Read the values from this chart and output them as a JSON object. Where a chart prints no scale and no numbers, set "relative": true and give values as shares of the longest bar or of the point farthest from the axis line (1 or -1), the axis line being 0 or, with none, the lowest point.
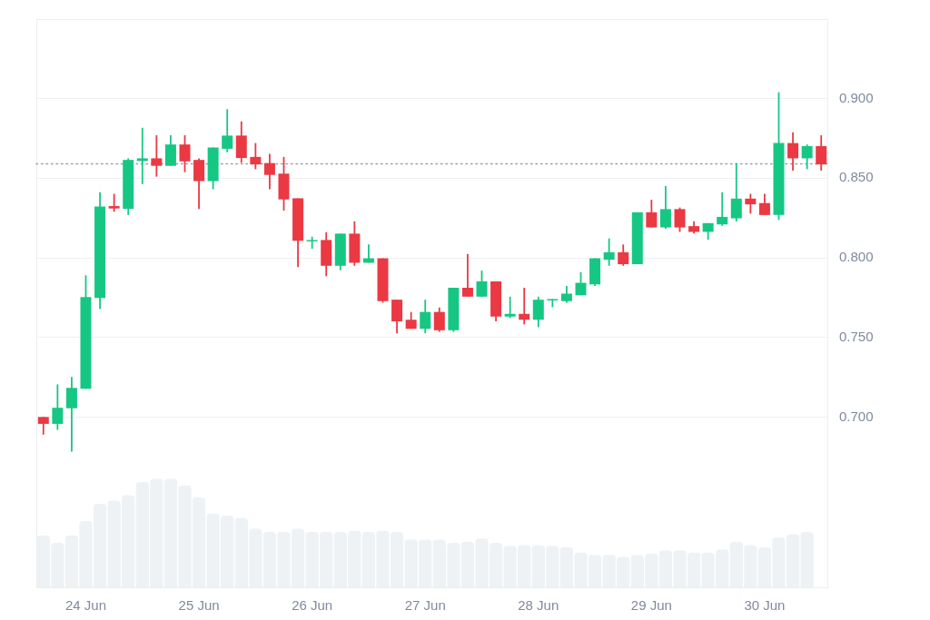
{
  "chart_data": [
    {
      "type": "candlestick",
      "categories": [
        null,
        null,
        null,
        "24 Jun",
        null,
        null,
        null,
        null,
        null,
        null,
        null,
        "25 Jun",
        null,
        null,
        null,
        null,
        null,
        null,
        null,
        "26 Jun",
        null,
        null,
        null,
        null,
        null,
        null,
        null,
        "27 Jun",
        null,
        null,
        null,
        null,
        null,
        null,
        null,
        "28 Jun",
        null,
        null,
        null,
        null,
        null,
        null,
        null,
        "29 Jun",
        null,
        null,
        null,
        null,
        null,
        null,
        null,
        "30 Jun",
        null,
        null,
        null,
        null
      ],
      "ohlc": [
        [
          0.7,
          0.7,
          0.6889,
          0.6957
        ],
        [
          0.6957,
          0.7205,
          0.6919,
          0.7058
        ],
        [
          0.7055,
          0.7251,
          0.6783,
          0.7183
        ],
        [
          0.7177,
          0.789,
          0.7177,
          0.7754
        ],
        [
          0.7748,
          0.8412,
          0.768,
          0.8323
        ],
        [
          0.8325,
          0.8402,
          0.8289,
          0.831
        ],
        [
          0.8308,
          0.8625,
          0.8269,
          0.8615
        ],
        [
          0.8608,
          0.8817,
          0.8463,
          0.8625
        ],
        [
          0.8625,
          0.877,
          0.851,
          0.8578
        ],
        [
          0.8578,
          0.877,
          0.8578,
          0.8712
        ],
        [
          0.8712,
          0.877,
          0.8538,
          0.8606
        ],
        [
          0.8615,
          0.8625,
          0.8306,
          0.8482
        ],
        [
          0.8482,
          0.8693,
          0.8431,
          0.8693
        ],
        [
          0.8685,
          0.8934,
          0.8663,
          0.8768
        ],
        [
          0.8768,
          0.8857,
          0.8597,
          0.8627
        ],
        [
          0.8634,
          0.8721,
          0.8557,
          0.8587
        ],
        [
          0.8595,
          0.8653,
          0.8431,
          0.8521
        ],
        [
          0.8529,
          0.8634,
          0.8297,
          0.8367
        ],
        [
          0.8374,
          0.8374,
          0.7941,
          0.8107
        ],
        [
          0.8107,
          0.8133,
          0.8057,
          0.8112
        ],
        [
          0.8112,
          0.8161,
          0.7884,
          0.795
        ],
        [
          0.795,
          0.8152,
          0.7922,
          0.8152
        ],
        [
          0.8152,
          0.8229,
          0.795,
          0.7969
        ],
        [
          0.7969,
          0.8084,
          0.7969,
          0.7997
        ],
        [
          0.7997,
          0.7997,
          0.7718,
          0.7728
        ],
        [
          0.7737,
          0.7737,
          0.7526,
          0.7601
        ],
        [
          0.7611,
          0.766,
          0.7554,
          0.7554
        ],
        [
          0.7554,
          0.7737,
          0.7526,
          0.766
        ],
        [
          0.766,
          0.7688,
          0.7535,
          0.7545
        ],
        [
          0.7545,
          0.7812,
          0.7535,
          0.7812
        ],
        [
          0.7812,
          0.8025,
          0.7756,
          0.7756
        ],
        [
          0.7756,
          0.792,
          0.7756,
          0.7852
        ],
        [
          0.7852,
          0.7852,
          0.7601,
          0.7631
        ],
        [
          0.7631,
          0.7756,
          0.7622,
          0.7648
        ],
        [
          0.7648,
          0.7812,
          0.7582,
          0.7611
        ],
        [
          0.7611,
          0.7756,
          0.7564,
          0.7737
        ],
        [
          0.7733,
          0.7741,
          0.769,
          0.7741
        ],
        [
          0.7728,
          0.7824,
          0.7718,
          0.7775
        ],
        [
          0.7765,
          0.791,
          0.7765,
          0.7843
        ],
        [
          0.7833,
          0.7997,
          0.7824,
          0.7997
        ],
        [
          0.7988,
          0.8122,
          0.795,
          0.8035
        ],
        [
          0.8035,
          0.8084,
          0.795,
          0.796
        ],
        [
          0.796,
          0.8286,
          0.796,
          0.8286
        ],
        [
          0.8286,
          0.8365,
          0.8191,
          0.8191
        ],
        [
          0.8191,
          0.845,
          0.8182,
          0.8306
        ],
        [
          0.8306,
          0.8316,
          0.8163,
          0.8191
        ],
        [
          0.8199,
          0.8229,
          0.8152,
          0.8163
        ],
        [
          0.8163,
          0.8218,
          0.8114,
          0.8218
        ],
        [
          0.821,
          0.8412,
          0.8201,
          0.8257
        ],
        [
          0.8248,
          0.8595,
          0.8229,
          0.8372
        ],
        [
          0.8372,
          0.8402,
          0.8278,
          0.8336
        ],
        [
          0.8344,
          0.8402,
          0.8269,
          0.8269
        ],
        [
          0.8269,
          0.904,
          0.8238,
          0.8721
        ],
        [
          0.8721,
          0.8789,
          0.8548,
          0.8625
        ],
        [
          0.8625,
          0.8712,
          0.8557,
          0.8702
        ],
        [
          0.8702,
          0.877,
          0.8548,
          0.8587
        ]
      ],
      "colors": [
        "#ea3943",
        "#16c784",
        "#16c784",
        "#16c784",
        "#16c784",
        "#ea3943",
        "#16c784",
        "#16c784",
        "#ea3943",
        "#16c784",
        "#ea3943",
        "#ea3943",
        "#16c784",
        "#16c784",
        "#ea3943",
        "#ea3943",
        "#ea3943",
        "#ea3943",
        "#ea3943",
        "#16c784",
        "#ea3943",
        "#16c784",
        "#ea3943",
        "#16c784",
        "#ea3943",
        "#ea3943",
        "#ea3943",
        "#16c784",
        "#ea3943",
        "#16c784",
        "#ea3943",
        "#16c784",
        "#ea3943",
        "#16c784",
        "#ea3943",
        "#16c784",
        "#16c784",
        "#16c784",
        "#16c784",
        "#16c784",
        "#16c784",
        "#ea3943",
        "#16c784",
        "#ea3943",
        "#16c784",
        "#ea3943",
        "#ea3943",
        "#16c784",
        "#16c784",
        "#16c784",
        "#ea3943",
        "#ea3943",
        "#16c784",
        "#ea3943",
        "#16c784",
        "#ea3943"
      ],
      "ylim": [
        0.593,
        0.95
      ],
      "yticks": [
        {
          "value": 0.7,
          "label": "0.700"
        },
        {
          "value": 0.75,
          "label": "0.750"
        },
        {
          "value": 0.8,
          "label": "0.800"
        },
        {
          "value": 0.85,
          "label": "0.850"
        },
        {
          "value": 0.9,
          "label": "0.900"
        }
      ],
      "ref_lines": [
        {
          "axis": "y",
          "value": 0.859,
          "color": "#9a9fa8",
          "line_style": "dotted"
        }
      ],
      "grid": "y",
      "legend": false
    },
    {
      "type": "bar",
      "relative": true,
      "color": "#eff2f5",
      "categories": [
        null,
        null,
        null,
        null,
        null,
        null,
        null,
        null,
        null,
        null,
        null,
        null,
        null,
        null,
        null,
        null,
        null,
        null,
        null,
        null,
        null,
        null,
        null,
        null,
        null,
        null,
        null,
        null,
        null,
        null,
        null,
        null,
        null,
        null,
        null,
        null,
        null,
        null,
        null,
        null,
        null,
        null,
        null,
        null,
        null,
        null,
        null,
        null,
        null,
        null,
        null,
        null,
        null,
        null,
        null,
        null
      ],
      "values": [
        0.48,
        0.41,
        0.48,
        0.61,
        0.77,
        0.8,
        0.85,
        0.97,
        1,
        1,
        0.94,
        0.83,
        0.68,
        0.66,
        0.64,
        0.54,
        0.51,
        0.51,
        0.54,
        0.51,
        0.51,
        0.51,
        0.52,
        0.51,
        0.52,
        0.51,
        0.44,
        0.44,
        0.44,
        0.41,
        0.42,
        0.45,
        0.41,
        0.38,
        0.39,
        0.39,
        0.38,
        0.37,
        0.32,
        0.3,
        0.3,
        0.28,
        0.3,
        0.31,
        0.34,
        0.34,
        0.32,
        0.32,
        0.35,
        0.42,
        0.39,
        0.37,
        0.46,
        0.49,
        0.51,
        null
      ],
      "legend": false
    }
  ]
}
